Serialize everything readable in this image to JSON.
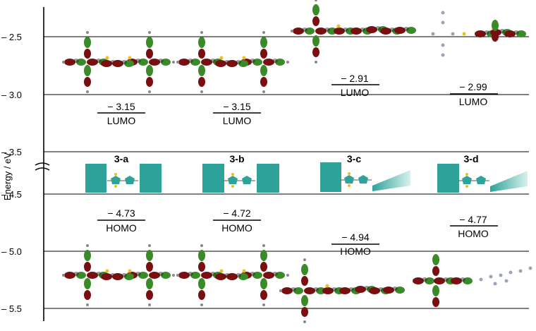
{
  "y_axis_label": "Energy / eV",
  "tick_labels": [
    "– 2.5",
    "– 3.0",
    "– 3.5",
    "– 4.5",
    "– 5.0",
    "– 5.5"
  ],
  "colors": {
    "teal": "#2fa39a",
    "orbital_red": "#7a0f12",
    "orbital_green": "#3a8a2a",
    "line": "#000000"
  },
  "compounds": [
    {
      "name": "3-a",
      "lumo_value": "− 3.15",
      "lumo_label": "LUMO",
      "homo_value": "− 4.73",
      "homo_label": "HOMO"
    },
    {
      "name": "3-b",
      "lumo_value": "− 3.15",
      "lumo_label": "LUMO",
      "homo_value": "− 4.72",
      "homo_label": "HOMO"
    },
    {
      "name": "3-c",
      "lumo_value": "− 2.91",
      "lumo_label": "LUMO",
      "homo_value": "− 4.94",
      "homo_label": "HOMO"
    },
    {
      "name": "3-d",
      "lumo_value": "− 2.99",
      "lumo_label": "LUMO",
      "homo_value": "− 4.77",
      "homo_label": "HOMO"
    }
  ]
}
